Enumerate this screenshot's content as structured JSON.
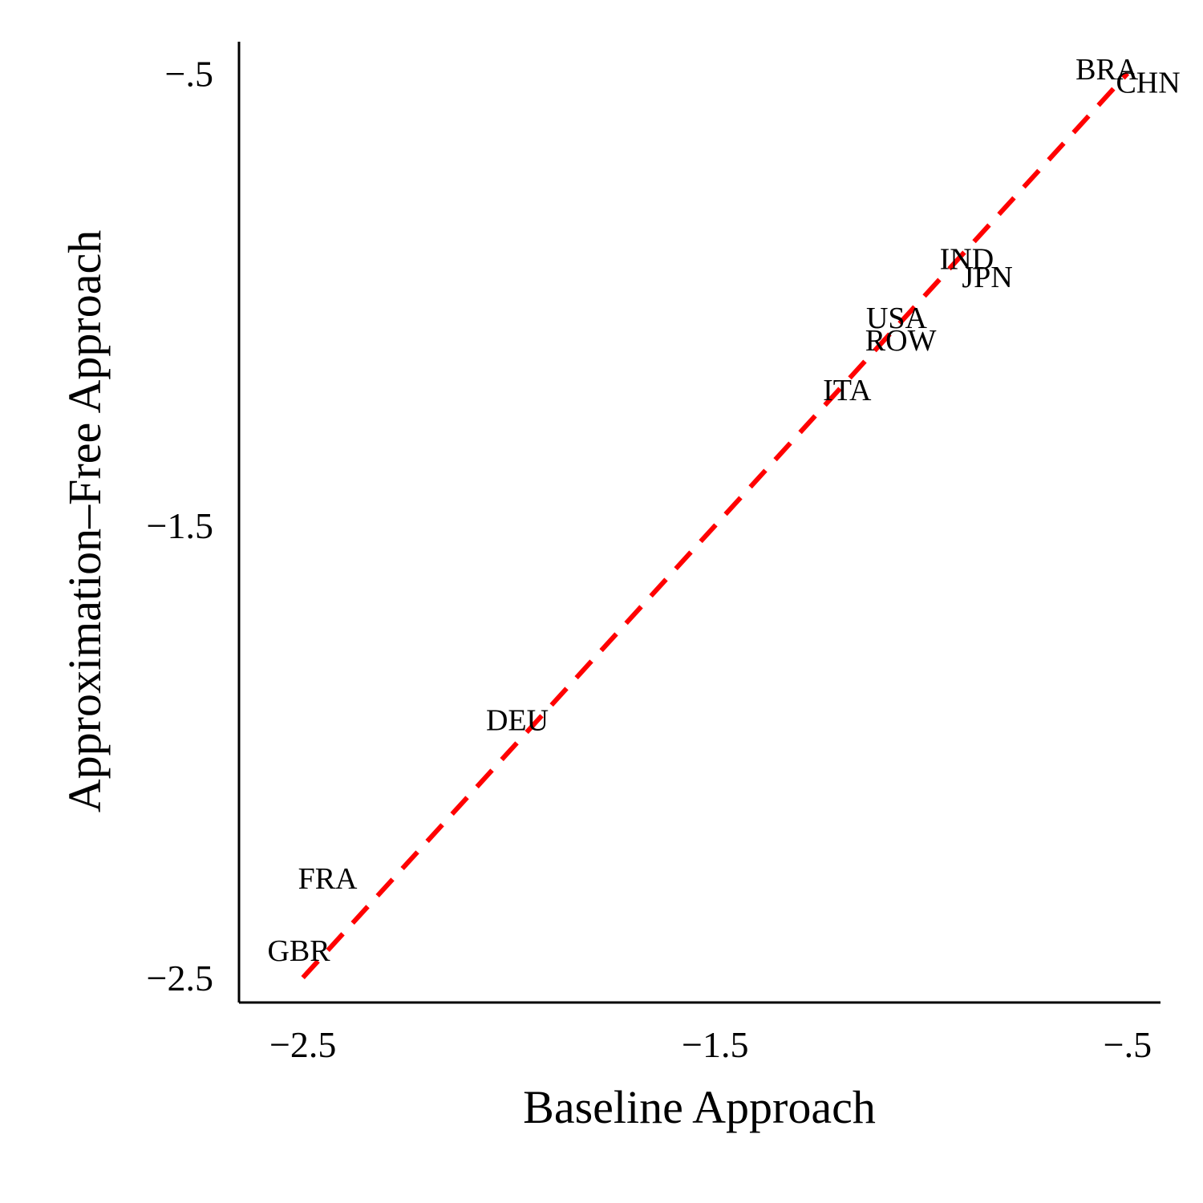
{
  "chart_data": {
    "type": "scatter",
    "title": "",
    "xlabel": "Baseline Approach",
    "ylabel": "Approximation–Free Approach",
    "xlim": [
      -2.655,
      -0.42
    ],
    "ylim": [
      -2.555,
      -0.43
    ],
    "x_ticks": [
      {
        "value": -2.5,
        "label": "−2.5"
      },
      {
        "value": -1.5,
        "label": "−1.5"
      },
      {
        "value": -0.5,
        "label": "−.5"
      }
    ],
    "y_ticks": [
      {
        "value": -2.5,
        "label": "−2.5"
      },
      {
        "value": -1.5,
        "label": "−1.5"
      },
      {
        "value": -0.5,
        "label": "−.5"
      }
    ],
    "points": [
      {
        "label": "BRA",
        "x": -0.55,
        "y": -0.49
      },
      {
        "label": "CHN",
        "x": -0.45,
        "y": -0.52
      },
      {
        "label": "IND",
        "x": -0.89,
        "y": -0.91
      },
      {
        "label": "JPN",
        "x": -0.84,
        "y": -0.95
      },
      {
        "label": "USA",
        "x": -1.06,
        "y": -1.04
      },
      {
        "label": "ROW",
        "x": -1.05,
        "y": -1.09
      },
      {
        "label": "ITA",
        "x": -1.18,
        "y": -1.2
      },
      {
        "label": "DEU",
        "x": -1.98,
        "y": -1.93
      },
      {
        "label": "FRA",
        "x": -2.44,
        "y": -2.28
      },
      {
        "label": "GBR",
        "x": -2.51,
        "y": -2.44
      }
    ],
    "reference_line": {
      "style": "dashed",
      "color": "#ff0000",
      "from": [
        -2.5,
        -2.5
      ],
      "to": [
        -0.5,
        -0.5
      ]
    },
    "grid": false,
    "legend": "none"
  }
}
